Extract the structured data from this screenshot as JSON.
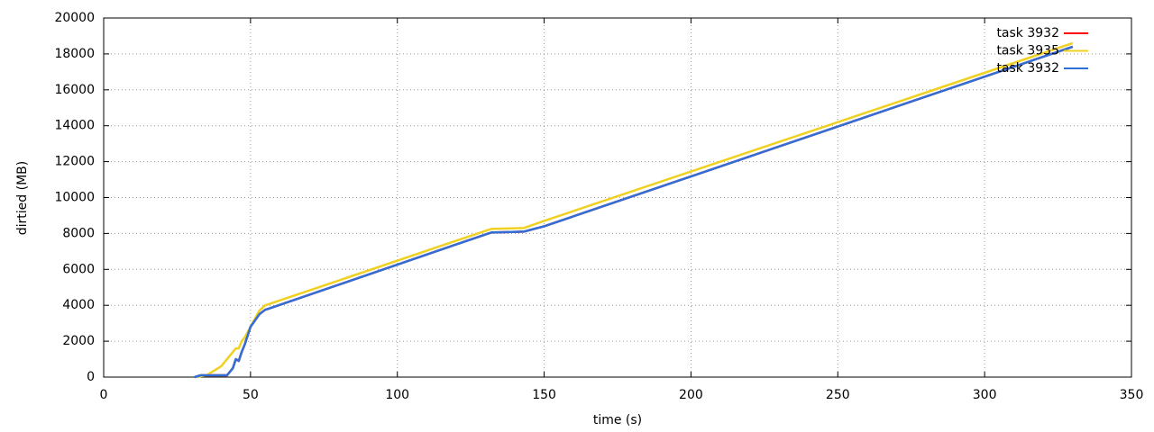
{
  "chart_data": {
    "type": "line",
    "x_label": "time (s)",
    "y_label": "dirtied (MB)",
    "x": [
      31,
      32,
      33,
      35,
      40,
      42,
      44,
      45,
      46,
      47,
      48,
      50,
      53,
      55,
      56,
      131,
      132,
      143,
      150,
      330
    ],
    "series": [
      {
        "name": "task 3932",
        "color": "#ff0000",
        "values": [
          0,
          50,
          100,
          100,
          100,
          100,
          500,
          1000,
          900,
          1400,
          1800,
          2800,
          3500,
          3750,
          3800,
          8000,
          8050,
          8100,
          8400,
          18400
        ]
      },
      {
        "name": "task 3935",
        "color": "#f0d020",
        "values": [
          null,
          0,
          50,
          100,
          600,
          1000,
          1400,
          1600,
          1600,
          2000,
          2200,
          2800,
          3700,
          4000,
          4050,
          8200,
          8250,
          8300,
          8700,
          18600
        ]
      },
      {
        "name": "task 3932",
        "color": "#2f6fd6",
        "values": [
          0,
          50,
          100,
          100,
          100,
          100,
          500,
          1000,
          900,
          1400,
          1800,
          2800,
          3500,
          3750,
          3800,
          8000,
          8050,
          8100,
          8400,
          18400
        ]
      }
    ],
    "xlim": [
      0,
      350
    ],
    "xticks": [
      0,
      50,
      100,
      150,
      200,
      250,
      300,
      350
    ],
    "ylim": [
      0,
      20000
    ],
    "yticks": [
      0,
      2000,
      4000,
      6000,
      8000,
      10000,
      12000,
      14000,
      16000,
      18000,
      20000
    ],
    "grid": true,
    "legend": "top-right"
  }
}
